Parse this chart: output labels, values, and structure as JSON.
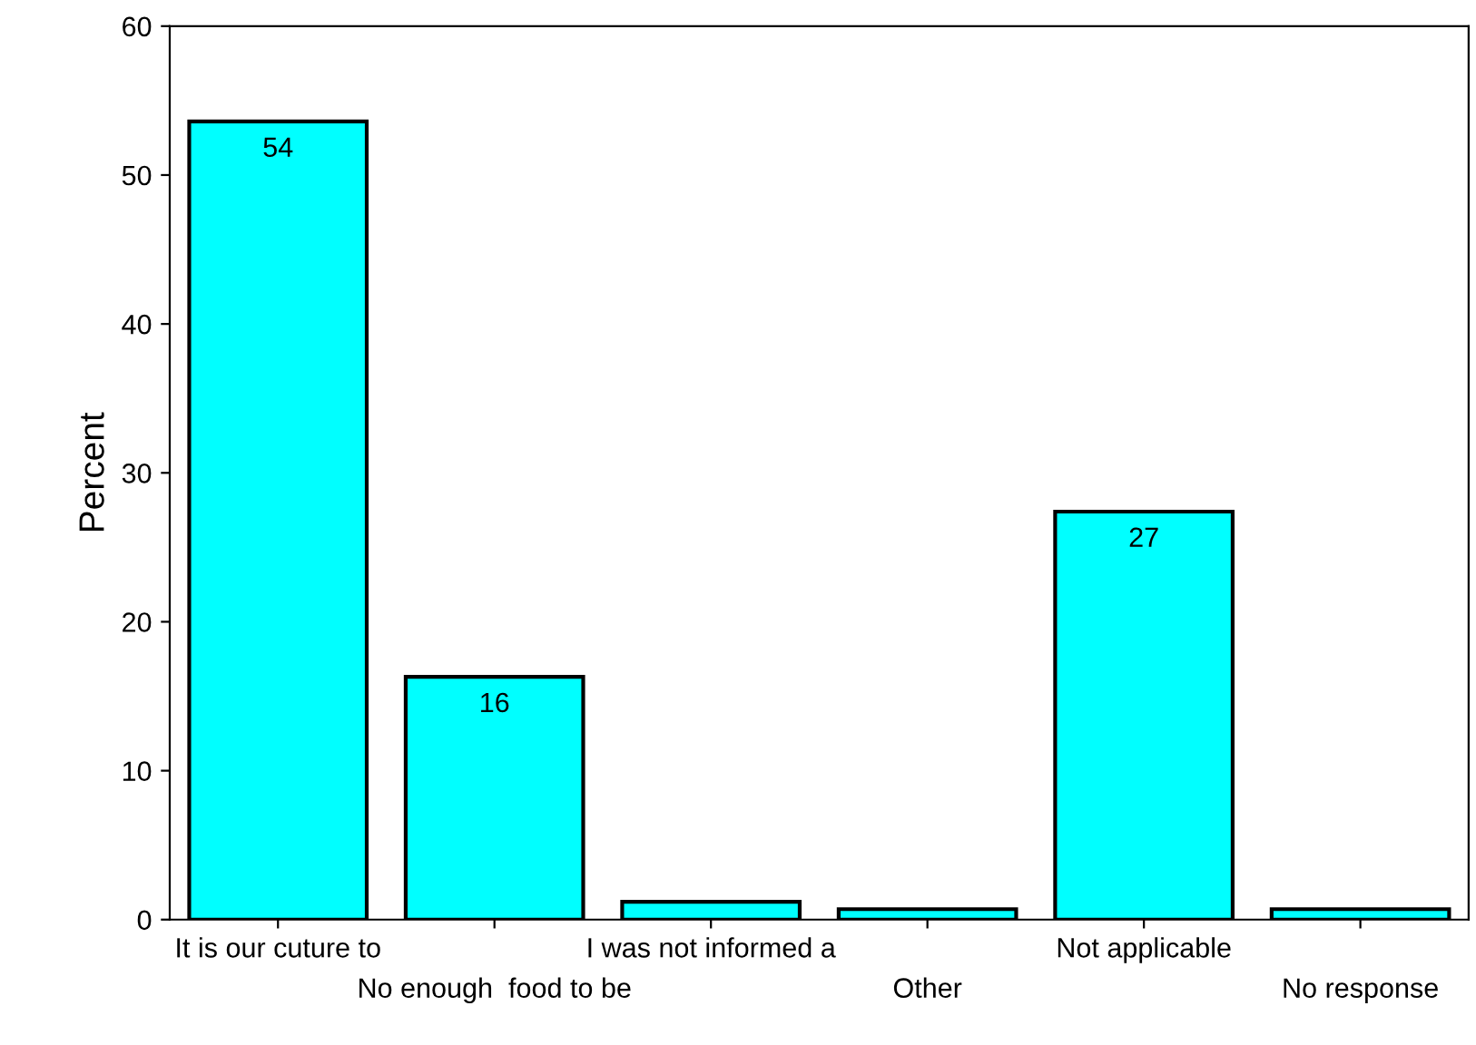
{
  "chart_data": {
    "type": "bar",
    "ylabel": "Percent",
    "categories": [
      "It is our cuture to",
      "No enough  food to be",
      "I was not informed a",
      "Other",
      "Not applicable",
      "No response"
    ],
    "values": [
      53.6,
      16.3,
      1.2,
      0.7,
      27.4,
      0.7
    ],
    "value_labels": [
      "54",
      "16",
      null,
      null,
      "27",
      null
    ],
    "color": "#00ffff",
    "ylim": [
      0,
      60
    ],
    "yticks": [
      0,
      10,
      20,
      30,
      40,
      50,
      60
    ],
    "grid": false,
    "legend": false
  }
}
